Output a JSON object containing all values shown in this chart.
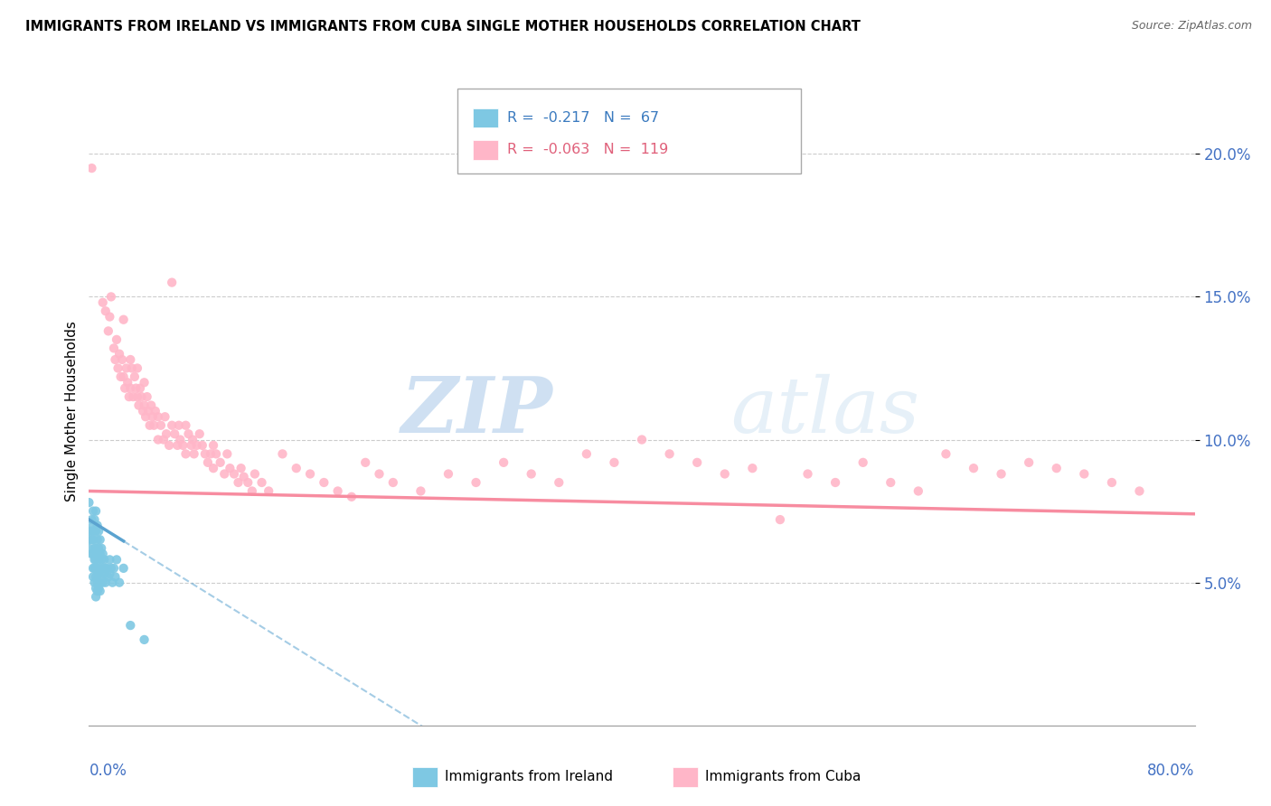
{
  "title": "IMMIGRANTS FROM IRELAND VS IMMIGRANTS FROM CUBA SINGLE MOTHER HOUSEHOLDS CORRELATION CHART",
  "source": "Source: ZipAtlas.com",
  "ylabel": "Single Mother Households",
  "y_ticks": [
    0.05,
    0.1,
    0.15,
    0.2
  ],
  "y_tick_labels": [
    "5.0%",
    "10.0%",
    "15.0%",
    "20.0%"
  ],
  "xlim": [
    0.0,
    0.8
  ],
  "ylim": [
    0.0,
    0.22
  ],
  "ireland_color": "#7ec8e3",
  "cuba_color": "#ffb6c8",
  "ireland_line_color": "#5ba3d0",
  "cuba_line_color": "#f78ca0",
  "ireland_R": -0.217,
  "ireland_N": 67,
  "cuba_R": -0.063,
  "cuba_N": 119,
  "watermark_zip": "ZIP",
  "watermark_atlas": "atlas",
  "ireland_points": [
    [
      0.0,
      0.078
    ],
    [
      0.0,
      0.068
    ],
    [
      0.0,
      0.065
    ],
    [
      0.0,
      0.062
    ],
    [
      0.002,
      0.072
    ],
    [
      0.002,
      0.068
    ],
    [
      0.002,
      0.065
    ],
    [
      0.002,
      0.06
    ],
    [
      0.003,
      0.075
    ],
    [
      0.003,
      0.07
    ],
    [
      0.003,
      0.065
    ],
    [
      0.003,
      0.06
    ],
    [
      0.003,
      0.055
    ],
    [
      0.003,
      0.052
    ],
    [
      0.004,
      0.072
    ],
    [
      0.004,
      0.068
    ],
    [
      0.004,
      0.062
    ],
    [
      0.004,
      0.058
    ],
    [
      0.004,
      0.055
    ],
    [
      0.004,
      0.05
    ],
    [
      0.005,
      0.075
    ],
    [
      0.005,
      0.068
    ],
    [
      0.005,
      0.062
    ],
    [
      0.005,
      0.058
    ],
    [
      0.005,
      0.055
    ],
    [
      0.005,
      0.052
    ],
    [
      0.005,
      0.048
    ],
    [
      0.005,
      0.045
    ],
    [
      0.006,
      0.07
    ],
    [
      0.006,
      0.065
    ],
    [
      0.006,
      0.06
    ],
    [
      0.006,
      0.055
    ],
    [
      0.006,
      0.05
    ],
    [
      0.006,
      0.047
    ],
    [
      0.007,
      0.068
    ],
    [
      0.007,
      0.062
    ],
    [
      0.007,
      0.058
    ],
    [
      0.007,
      0.053
    ],
    [
      0.007,
      0.048
    ],
    [
      0.008,
      0.065
    ],
    [
      0.008,
      0.06
    ],
    [
      0.008,
      0.055
    ],
    [
      0.008,
      0.05
    ],
    [
      0.008,
      0.047
    ],
    [
      0.009,
      0.062
    ],
    [
      0.009,
      0.058
    ],
    [
      0.009,
      0.053
    ],
    [
      0.01,
      0.06
    ],
    [
      0.01,
      0.055
    ],
    [
      0.01,
      0.05
    ],
    [
      0.011,
      0.058
    ],
    [
      0.011,
      0.053
    ],
    [
      0.012,
      0.055
    ],
    [
      0.012,
      0.05
    ],
    [
      0.013,
      0.055
    ],
    [
      0.014,
      0.052
    ],
    [
      0.015,
      0.058
    ],
    [
      0.015,
      0.053
    ],
    [
      0.016,
      0.055
    ],
    [
      0.017,
      0.05
    ],
    [
      0.018,
      0.055
    ],
    [
      0.019,
      0.052
    ],
    [
      0.02,
      0.058
    ],
    [
      0.022,
      0.05
    ],
    [
      0.025,
      0.055
    ],
    [
      0.03,
      0.035
    ],
    [
      0.04,
      0.03
    ]
  ],
  "cuba_points": [
    [
      0.002,
      0.195
    ],
    [
      0.01,
      0.148
    ],
    [
      0.012,
      0.145
    ],
    [
      0.014,
      0.138
    ],
    [
      0.015,
      0.143
    ],
    [
      0.016,
      0.15
    ],
    [
      0.018,
      0.132
    ],
    [
      0.019,
      0.128
    ],
    [
      0.02,
      0.135
    ],
    [
      0.021,
      0.125
    ],
    [
      0.022,
      0.13
    ],
    [
      0.023,
      0.122
    ],
    [
      0.024,
      0.128
    ],
    [
      0.025,
      0.142
    ],
    [
      0.025,
      0.122
    ],
    [
      0.026,
      0.118
    ],
    [
      0.027,
      0.125
    ],
    [
      0.028,
      0.12
    ],
    [
      0.029,
      0.115
    ],
    [
      0.03,
      0.128
    ],
    [
      0.03,
      0.118
    ],
    [
      0.031,
      0.125
    ],
    [
      0.032,
      0.115
    ],
    [
      0.033,
      0.122
    ],
    [
      0.034,
      0.118
    ],
    [
      0.035,
      0.125
    ],
    [
      0.035,
      0.115
    ],
    [
      0.036,
      0.112
    ],
    [
      0.037,
      0.118
    ],
    [
      0.038,
      0.115
    ],
    [
      0.039,
      0.11
    ],
    [
      0.04,
      0.12
    ],
    [
      0.04,
      0.112
    ],
    [
      0.041,
      0.108
    ],
    [
      0.042,
      0.115
    ],
    [
      0.043,
      0.11
    ],
    [
      0.044,
      0.105
    ],
    [
      0.045,
      0.112
    ],
    [
      0.046,
      0.108
    ],
    [
      0.047,
      0.105
    ],
    [
      0.048,
      0.11
    ],
    [
      0.05,
      0.108
    ],
    [
      0.05,
      0.1
    ],
    [
      0.052,
      0.105
    ],
    [
      0.054,
      0.1
    ],
    [
      0.055,
      0.108
    ],
    [
      0.056,
      0.102
    ],
    [
      0.058,
      0.098
    ],
    [
      0.06,
      0.155
    ],
    [
      0.06,
      0.105
    ],
    [
      0.062,
      0.102
    ],
    [
      0.064,
      0.098
    ],
    [
      0.065,
      0.105
    ],
    [
      0.066,
      0.1
    ],
    [
      0.068,
      0.098
    ],
    [
      0.07,
      0.105
    ],
    [
      0.07,
      0.095
    ],
    [
      0.072,
      0.102
    ],
    [
      0.074,
      0.098
    ],
    [
      0.075,
      0.1
    ],
    [
      0.076,
      0.095
    ],
    [
      0.078,
      0.098
    ],
    [
      0.08,
      0.102
    ],
    [
      0.082,
      0.098
    ],
    [
      0.084,
      0.095
    ],
    [
      0.086,
      0.092
    ],
    [
      0.088,
      0.095
    ],
    [
      0.09,
      0.098
    ],
    [
      0.09,
      0.09
    ],
    [
      0.092,
      0.095
    ],
    [
      0.095,
      0.092
    ],
    [
      0.098,
      0.088
    ],
    [
      0.1,
      0.095
    ],
    [
      0.102,
      0.09
    ],
    [
      0.105,
      0.088
    ],
    [
      0.108,
      0.085
    ],
    [
      0.11,
      0.09
    ],
    [
      0.112,
      0.087
    ],
    [
      0.115,
      0.085
    ],
    [
      0.118,
      0.082
    ],
    [
      0.12,
      0.088
    ],
    [
      0.125,
      0.085
    ],
    [
      0.13,
      0.082
    ],
    [
      0.14,
      0.095
    ],
    [
      0.15,
      0.09
    ],
    [
      0.16,
      0.088
    ],
    [
      0.17,
      0.085
    ],
    [
      0.18,
      0.082
    ],
    [
      0.19,
      0.08
    ],
    [
      0.2,
      0.092
    ],
    [
      0.21,
      0.088
    ],
    [
      0.22,
      0.085
    ],
    [
      0.24,
      0.082
    ],
    [
      0.26,
      0.088
    ],
    [
      0.28,
      0.085
    ],
    [
      0.3,
      0.092
    ],
    [
      0.32,
      0.088
    ],
    [
      0.34,
      0.085
    ],
    [
      0.36,
      0.095
    ],
    [
      0.38,
      0.092
    ],
    [
      0.4,
      0.1
    ],
    [
      0.42,
      0.095
    ],
    [
      0.44,
      0.092
    ],
    [
      0.46,
      0.088
    ],
    [
      0.48,
      0.09
    ],
    [
      0.5,
      0.072
    ],
    [
      0.52,
      0.088
    ],
    [
      0.54,
      0.085
    ],
    [
      0.56,
      0.092
    ],
    [
      0.58,
      0.085
    ],
    [
      0.6,
      0.082
    ],
    [
      0.62,
      0.095
    ],
    [
      0.64,
      0.09
    ],
    [
      0.66,
      0.088
    ],
    [
      0.68,
      0.092
    ],
    [
      0.7,
      0.09
    ],
    [
      0.72,
      0.088
    ],
    [
      0.74,
      0.085
    ],
    [
      0.76,
      0.082
    ]
  ]
}
